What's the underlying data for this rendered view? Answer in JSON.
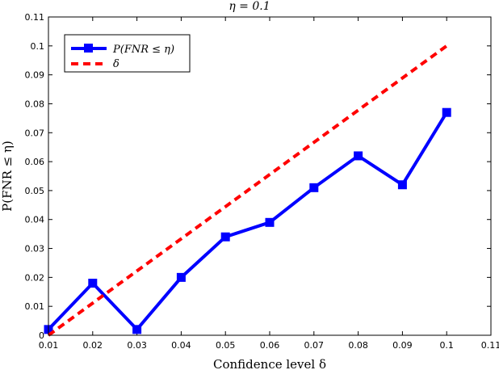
{
  "chart_data": {
    "type": "line",
    "title": "η = 0.1",
    "xlabel": "Confidence level δ",
    "ylabel": "P(FNR ≤ η)",
    "xlim": [
      0.01,
      0.11
    ],
    "ylim": [
      0,
      0.11
    ],
    "x_ticks": [
      "0.01",
      "0.02",
      "0.03",
      "0.04",
      "0.05",
      "0.06",
      "0.07",
      "0.08",
      "0.09",
      "0.1",
      "0.11"
    ],
    "y_ticks": [
      "0",
      "0.01",
      "0.02",
      "0.03",
      "0.04",
      "0.05",
      "0.06",
      "0.07",
      "0.08",
      "0.09",
      "0.1",
      "0.11"
    ],
    "grid": false,
    "legend_position": "top-left",
    "series": [
      {
        "name": "P(FNR ≤ η)",
        "color": "#0000ff",
        "style": "solid",
        "marker": "square",
        "x": [
          0.01,
          0.02,
          0.03,
          0.04,
          0.05,
          0.06,
          0.07,
          0.08,
          0.09,
          0.1
        ],
        "y": [
          0.002,
          0.018,
          0.002,
          0.02,
          0.034,
          0.039,
          0.051,
          0.062,
          0.052,
          0.077
        ]
      },
      {
        "name": "δ",
        "color": "#ff0000",
        "style": "dashed",
        "marker": "none",
        "x": [
          0.01,
          0.1
        ],
        "y": [
          0.0,
          0.1
        ]
      }
    ]
  }
}
